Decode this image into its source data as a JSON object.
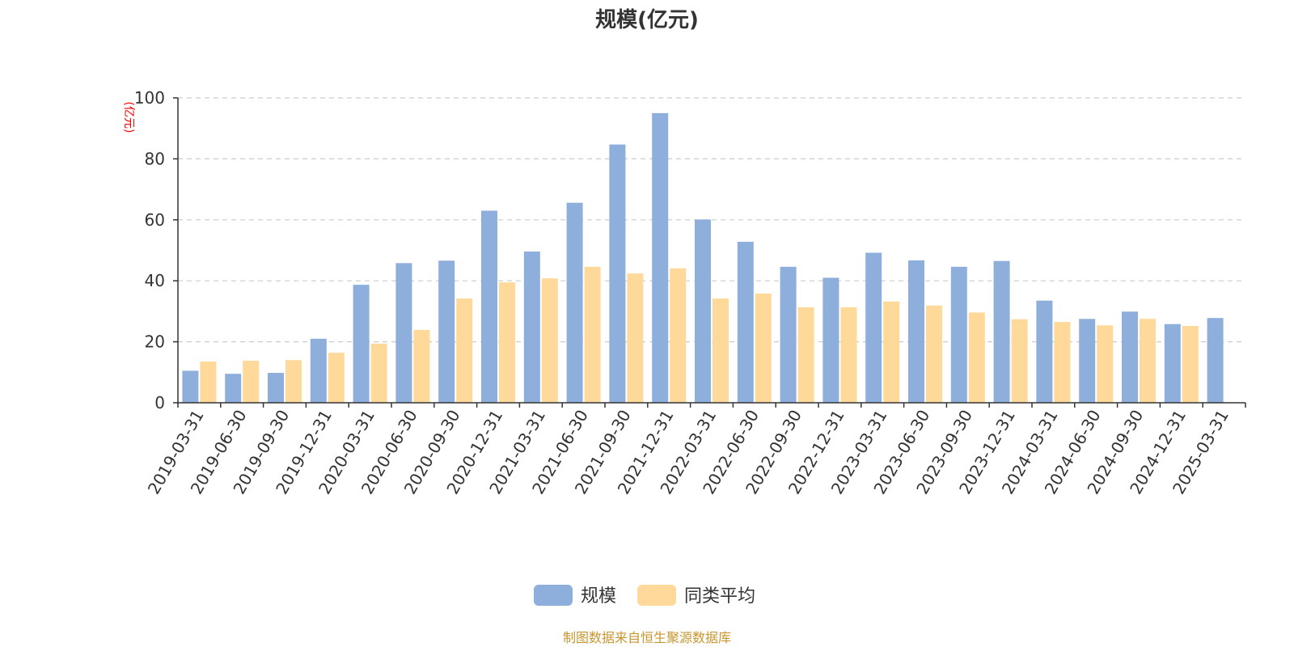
{
  "chart_data": {
    "type": "bar",
    "title": "规模(亿元)",
    "ylabel": "(亿元)",
    "ylim": [
      0,
      100
    ],
    "yticks": [
      0,
      20,
      40,
      60,
      80,
      100
    ],
    "grid": true,
    "legend_position": "bottom-center",
    "categories": [
      "2019-03-31",
      "2019-06-30",
      "2019-09-30",
      "2019-12-31",
      "2020-03-31",
      "2020-06-30",
      "2020-09-30",
      "2020-12-31",
      "2021-03-31",
      "2021-06-30",
      "2021-09-30",
      "2021-12-31",
      "2022-03-31",
      "2022-06-30",
      "2022-09-30",
      "2022-12-31",
      "2023-03-31",
      "2023-06-30",
      "2023-09-30",
      "2023-12-31",
      "2024-03-31",
      "2024-06-30",
      "2024-09-30",
      "2024-12-31",
      "2025-03-31"
    ],
    "series": [
      {
        "name": "规模",
        "color": "#8eaedb",
        "values": [
          10.5,
          9.5,
          9.8,
          21,
          38.7,
          45.8,
          46.6,
          63,
          49.6,
          65.6,
          84.7,
          95,
          60.1,
          52.8,
          44.6,
          41,
          49.2,
          46.7,
          44.6,
          46.5,
          33.5,
          27.5,
          29.9,
          25.8,
          27.8
        ]
      },
      {
        "name": "同类平均",
        "color": "#ffd99a",
        "values": [
          13.5,
          13.8,
          14,
          16.4,
          19.4,
          23.9,
          34.2,
          39.5,
          40.8,
          44.6,
          42.4,
          44.1,
          34.2,
          35.8,
          31.3,
          31.3,
          33.2,
          31.9,
          29.6,
          27.4,
          26.5,
          25.4,
          27.5,
          25.2,
          null
        ]
      }
    ],
    "unit_color": "#ff0000"
  },
  "source_text": "制图数据来自恒生聚源数据库",
  "source_color": "#c8962e"
}
